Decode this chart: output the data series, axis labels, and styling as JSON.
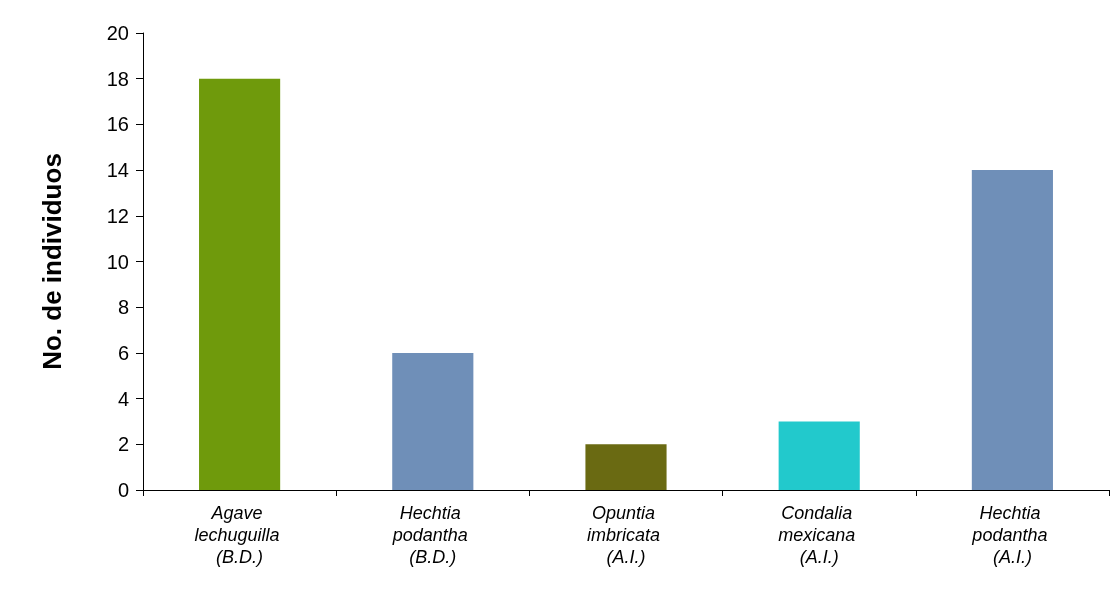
{
  "chart_data": {
    "type": "bar",
    "ylabel": "No. de individuos",
    "categories": [
      "Agave lechuguilla (B.D.)",
      "Hechtia podantha (B.D.)",
      "Opuntia imbricata (A.I.)",
      "Condalia mexicana (A.I.)",
      "Hechtia podantha (A.I.)"
    ],
    "values": [
      18,
      6,
      2,
      3,
      14
    ],
    "colors": [
      "#6f9a0c",
      "#6f8fb8",
      "#6a6a12",
      "#22c9cc",
      "#6f8fb8"
    ],
    "ylim": [
      0,
      20
    ],
    "yticks": [
      0,
      2,
      4,
      6,
      8,
      10,
      12,
      14,
      16,
      18,
      20
    ],
    "grid": false
  }
}
